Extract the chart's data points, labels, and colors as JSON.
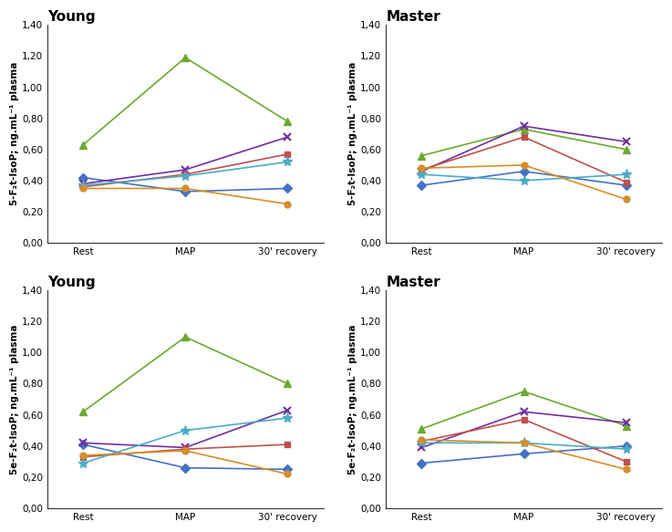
{
  "subplot_titles": [
    "Young",
    "Master",
    "Young",
    "Master"
  ],
  "ylabels": [
    "5-F₂t-IsoP; ng.mL⁻¹ plasma",
    "5-F₂t-IsoP; ng.mL⁻¹ plasma",
    "5e-F₂t-IsoP; ng.mL⁻¹ plasma",
    "5e-F₂t-IsoP; ng.mL⁻¹ plasma"
  ],
  "xtick_labels": [
    "Rest",
    "MAP",
    "30' recovery"
  ],
  "ylim": [
    0.0,
    1.4
  ],
  "yticks": [
    0.0,
    0.2,
    0.4,
    0.6,
    0.8,
    1.0,
    1.2,
    1.4
  ],
  "ytick_labels": [
    "0,00",
    "0,20",
    "0,40",
    "0,60",
    "0,80",
    "1,00",
    "1,20",
    "1,40"
  ],
  "series": {
    "top_left": [
      {
        "color": "#6aaa2e",
        "marker": "^",
        "data": [
          0.63,
          1.19,
          0.78
        ]
      },
      {
        "color": "#4472c4",
        "marker": "D",
        "data": [
          0.42,
          0.33,
          0.35
        ]
      },
      {
        "color": "#7030a0",
        "marker": "x",
        "data": [
          0.38,
          0.47,
          0.68
        ]
      },
      {
        "color": "#c0504d",
        "marker": "s",
        "data": [
          0.36,
          0.44,
          0.57
        ]
      },
      {
        "color": "#4bacc6",
        "marker": "*",
        "data": [
          0.37,
          0.43,
          0.52
        ]
      },
      {
        "color": "#d48f2a",
        "marker": "o",
        "data": [
          0.35,
          0.35,
          0.25
        ]
      }
    ],
    "top_right": [
      {
        "color": "#6aaa2e",
        "marker": "^",
        "data": [
          0.56,
          0.73,
          0.6
        ]
      },
      {
        "color": "#4472c4",
        "marker": "D",
        "data": [
          0.37,
          0.46,
          0.37
        ]
      },
      {
        "color": "#7030a0",
        "marker": "x",
        "data": [
          0.46,
          0.75,
          0.65
        ]
      },
      {
        "color": "#c0504d",
        "marker": "s",
        "data": [
          0.47,
          0.68,
          0.39
        ]
      },
      {
        "color": "#4bacc6",
        "marker": "*",
        "data": [
          0.44,
          0.4,
          0.44
        ]
      },
      {
        "color": "#d48f2a",
        "marker": "o",
        "data": [
          0.48,
          0.5,
          0.28
        ]
      }
    ],
    "bottom_left": [
      {
        "color": "#6aaa2e",
        "marker": "^",
        "data": [
          0.62,
          1.1,
          0.8
        ]
      },
      {
        "color": "#4472c4",
        "marker": "D",
        "data": [
          0.41,
          0.26,
          0.25
        ]
      },
      {
        "color": "#7030a0",
        "marker": "x",
        "data": [
          0.42,
          0.39,
          0.63
        ]
      },
      {
        "color": "#c0504d",
        "marker": "s",
        "data": [
          0.33,
          0.38,
          0.41
        ]
      },
      {
        "color": "#4bacc6",
        "marker": "*",
        "data": [
          0.29,
          0.5,
          0.58
        ]
      },
      {
        "color": "#d48f2a",
        "marker": "o",
        "data": [
          0.34,
          0.37,
          0.22
        ]
      }
    ],
    "bottom_right": [
      {
        "color": "#6aaa2e",
        "marker": "^",
        "data": [
          0.51,
          0.75,
          0.53
        ]
      },
      {
        "color": "#4472c4",
        "marker": "D",
        "data": [
          0.29,
          0.35,
          0.4
        ]
      },
      {
        "color": "#7030a0",
        "marker": "x",
        "data": [
          0.39,
          0.62,
          0.55
        ]
      },
      {
        "color": "#c0504d",
        "marker": "s",
        "data": [
          0.43,
          0.57,
          0.3
        ]
      },
      {
        "color": "#4bacc6",
        "marker": "*",
        "data": [
          0.42,
          0.42,
          0.38
        ]
      },
      {
        "color": "#d48f2a",
        "marker": "o",
        "data": [
          0.44,
          0.42,
          0.25
        ]
      }
    ]
  },
  "title_fontsize": 11,
  "axis_label_fontsize": 7.5,
  "tick_fontsize": 7.5
}
